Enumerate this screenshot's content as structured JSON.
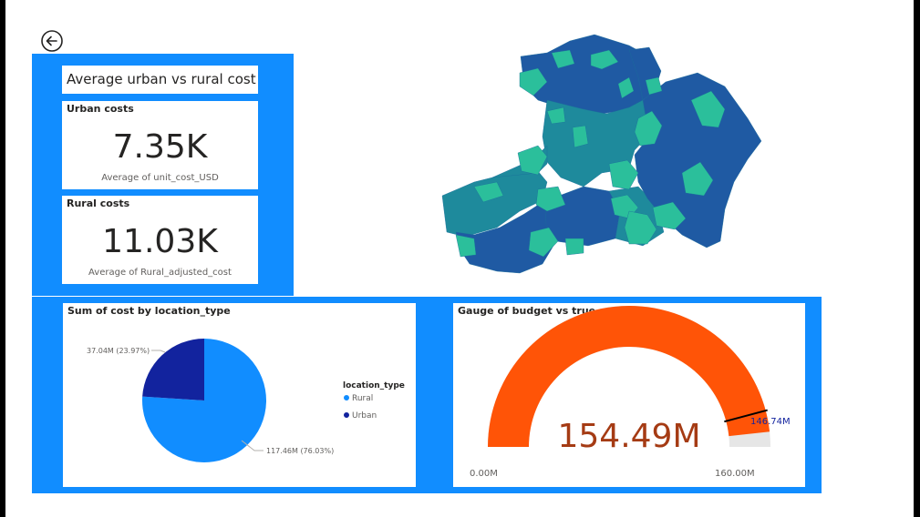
{
  "kpi_panel": {
    "title": "Average urban vs rural cost",
    "urban": {
      "title": "Urban costs",
      "value": "7.35K",
      "subtitle": "Average of unit_cost_USD"
    },
    "rural": {
      "title": "Rural costs",
      "value": "11.03K",
      "subtitle": "Average of Rural_adjusted_cost"
    }
  },
  "pie_card": {
    "title": "Sum of cost by location_type",
    "legend_title": "location_type",
    "slices": [
      {
        "label": "Rural",
        "value": 117.46,
        "display": "117.46M (76.03%)",
        "color": "#118DFF"
      },
      {
        "label": "Urban",
        "value": 37.04,
        "display": "37.04M (23.97%)",
        "color": "#12239E"
      }
    ]
  },
  "gauge_card": {
    "title": "Gauge of budget vs true spendage",
    "value_label": "154.49M",
    "value": 154.49,
    "min_label": "0.00M",
    "max_label": "160.00M",
    "min": 0,
    "max": 160,
    "target_label": "146.74M",
    "target": 146.74,
    "fill_color": "#FF5407",
    "track_color": "#E6E6E6",
    "target_color": "#12239E"
  },
  "map": {
    "colors": [
      "#1AAB40",
      "#2BBF9B",
      "#1E8A9C",
      "#1F5AA3",
      "#12239E"
    ]
  },
  "chart_data": [
    {
      "type": "pie",
      "title": "Sum of cost by location_type",
      "categories": [
        "Rural",
        "Urban"
      ],
      "values": [
        117.46,
        37.04
      ],
      "percentages": [
        76.03,
        23.97
      ],
      "legend_title": "location_type",
      "legend": "right"
    },
    {
      "type": "gauge",
      "title": "Gauge of budget vs true spendage",
      "value": 154.49,
      "target": 146.74,
      "range": [
        0,
        160
      ]
    }
  ]
}
